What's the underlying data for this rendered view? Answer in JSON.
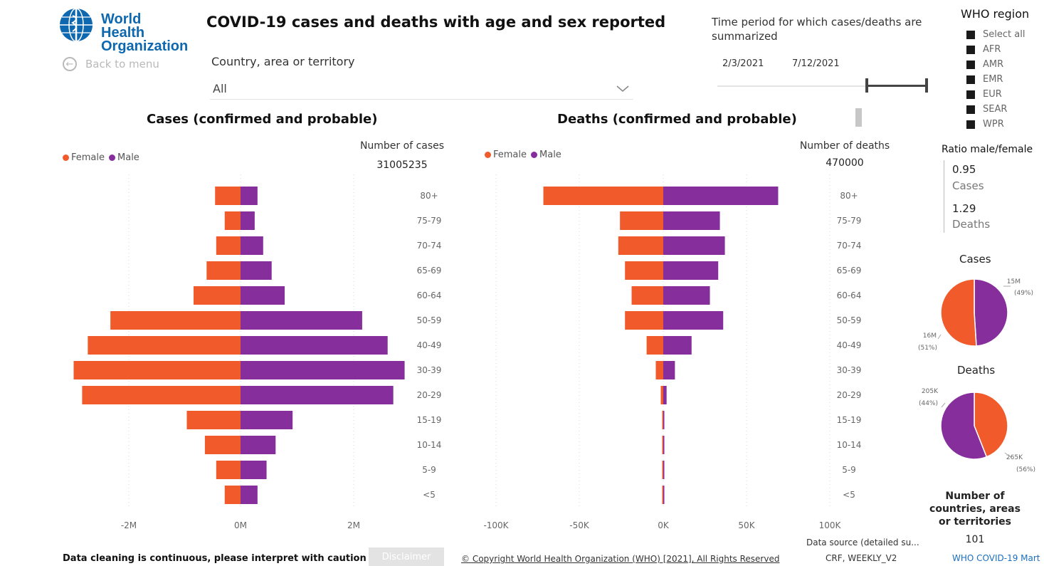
{
  "header": {
    "logo_line1": "World Health",
    "logo_line2": "Organization",
    "back_label": "Back to menu",
    "title": "COVID-19 cases and deaths with age and sex reported"
  },
  "filters": {
    "country_label": "Country, area or territory",
    "country_value": "All",
    "time_label": "Time period for which cases/deaths are summarized",
    "date_start": "2/3/2021",
    "date_end": "7/12/2021",
    "region_title": "WHO region",
    "regions": [
      "Select all",
      "AFR",
      "AMR",
      "EMR",
      "EUR",
      "SEAR",
      "WPR"
    ]
  },
  "colors": {
    "female": "#f15a2b",
    "male": "#862e9c",
    "grid": "#d9d9d9"
  },
  "legend": {
    "female": "Female",
    "male": "Male"
  },
  "cases_panel": {
    "title": "Cases (confirmed and probable)",
    "number_label": "Number of cases",
    "number_value": "31005235"
  },
  "deaths_panel": {
    "title": "Deaths (confirmed and probable)",
    "number_label": "Number of deaths",
    "number_value": "470000"
  },
  "ratio": {
    "title": "Ratio male/female",
    "cases_value": "0.95",
    "cases_label": "Cases",
    "deaths_value": "1.29",
    "deaths_label": "Deaths"
  },
  "pies": {
    "cases_title": "Cases",
    "deaths_title": "Deaths",
    "cases_male_label": "15M",
    "cases_male_pct": "(49%)",
    "cases_female_label": "16M",
    "cases_female_pct": "(51%)",
    "deaths_female_label": "205K",
    "deaths_female_pct": "(44%)",
    "deaths_male_label": "265K",
    "deaths_male_pct": "(56%)"
  },
  "countries": {
    "title_line1": "Number of",
    "title_line2": "countries, areas",
    "title_line3": "or territories",
    "value": "101"
  },
  "footer": {
    "warning": "Data cleaning is continuous, please interpret with caution",
    "disclaimer": "Disclaimer",
    "copyright": "© Copyright World Health Organization (WHO) [2021], All Rights Reserved",
    "source_label": "Data source (detailed su...",
    "source_value": "CRF, WEEKLY_V2",
    "mart_link": "WHO COVID-19 Mart"
  },
  "chart_data": [
    {
      "type": "bar",
      "orientation": "horizontal",
      "title": "Cases (confirmed and probable)",
      "categories": [
        "80+",
        "75-79",
        "70-74",
        "65-69",
        "60-64",
        "50-59",
        "40-49",
        "30-39",
        "20-29",
        "15-19",
        "10-14",
        "5-9",
        "<5"
      ],
      "series": [
        {
          "name": "Female",
          "values": [
            -0.45,
            -0.28,
            -0.43,
            -0.6,
            -0.83,
            -2.3,
            -2.7,
            -2.95,
            -2.8,
            -0.95,
            -0.63,
            -0.43,
            -0.28
          ]
        },
        {
          "name": "Male",
          "values": [
            0.3,
            0.25,
            0.4,
            0.55,
            0.78,
            2.15,
            2.6,
            2.9,
            2.7,
            0.92,
            0.62,
            0.46,
            0.3
          ]
        }
      ],
      "x_ticks": [
        "-2M",
        "0M",
        "2M"
      ],
      "xlim": [
        -3.0,
        3.0
      ],
      "x_unit": "M"
    },
    {
      "type": "bar",
      "orientation": "horizontal",
      "title": "Deaths (confirmed and probable)",
      "categories": [
        "80+",
        "75-79",
        "70-74",
        "65-69",
        "60-64",
        "50-59",
        "40-49",
        "30-39",
        "20-29",
        "15-19",
        "10-14",
        "5-9",
        "<5"
      ],
      "series": [
        {
          "name": "Female",
          "values": [
            -72,
            -26,
            -27,
            -23,
            -19,
            -23,
            -10,
            -4.5,
            -1.5,
            -0.5,
            -0.3,
            -0.3,
            -0.5
          ]
        },
        {
          "name": "Male",
          "values": [
            69,
            34,
            37,
            33,
            28,
            36,
            17,
            7,
            2,
            0.3,
            0.3,
            0.3,
            0.3
          ]
        }
      ],
      "x_ticks": [
        "-100K",
        "-50K",
        "0K",
        "50K",
        "100K"
      ],
      "xlim": [
        -100,
        100
      ],
      "x_unit": "K"
    },
    {
      "type": "pie",
      "title": "Cases",
      "labels": [
        "Male",
        "Female"
      ],
      "values": [
        49,
        51
      ]
    },
    {
      "type": "pie",
      "title": "Deaths",
      "labels": [
        "Female",
        "Male"
      ],
      "values": [
        44,
        56
      ]
    }
  ]
}
